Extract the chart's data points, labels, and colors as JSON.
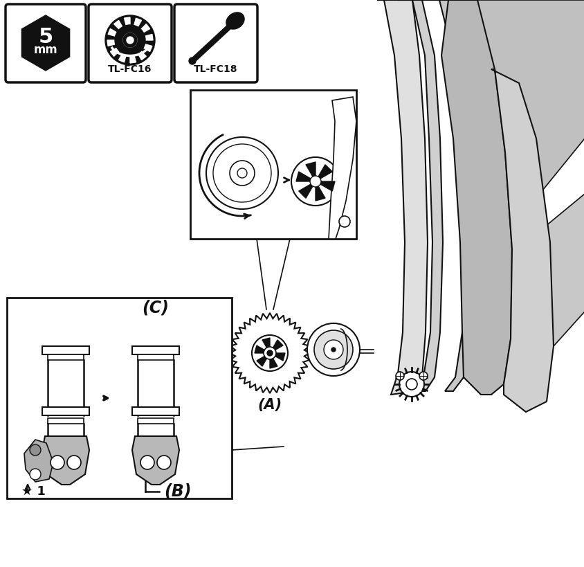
{
  "bg": "#ffffff",
  "lc": "#111111",
  "gray1": "#c8c8c8",
  "gray2": "#b0b0b0",
  "gray3": "#d8d8d8",
  "gray4": "#e8e8e8",
  "fig_w": 8.45,
  "fig_h": 8.19,
  "dpi": 100,
  "icon2_label": "TL-FC16",
  "icon3_label": "TL-FC18",
  "label_A": "(A)",
  "label_B": "(B)",
  "label_C": "(C)"
}
